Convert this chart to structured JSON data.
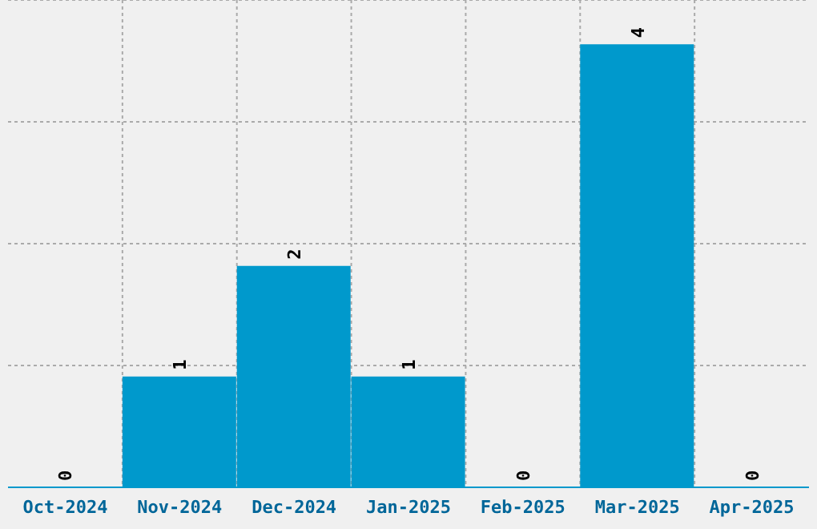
{
  "chart_data": {
    "type": "bar",
    "categories": [
      "Oct-2024",
      "Nov-2024",
      "Dec-2024",
      "Jan-2025",
      "Feb-2025",
      "Mar-2025",
      "Apr-2025"
    ],
    "values": [
      0,
      1,
      2,
      1,
      0,
      4,
      0
    ],
    "color": "#0099cc",
    "ylim": [
      0,
      4.4
    ],
    "yticks": [
      {
        "value": 0,
        "label": null
      },
      {
        "value": 1.1,
        "label": null
      },
      {
        "value": 2.2,
        "label": null
      },
      {
        "value": 3.3,
        "label": null
      },
      {
        "value": 4.4,
        "label": null
      }
    ],
    "tick_labels": "x",
    "grid": true,
    "data_labels": true
  }
}
